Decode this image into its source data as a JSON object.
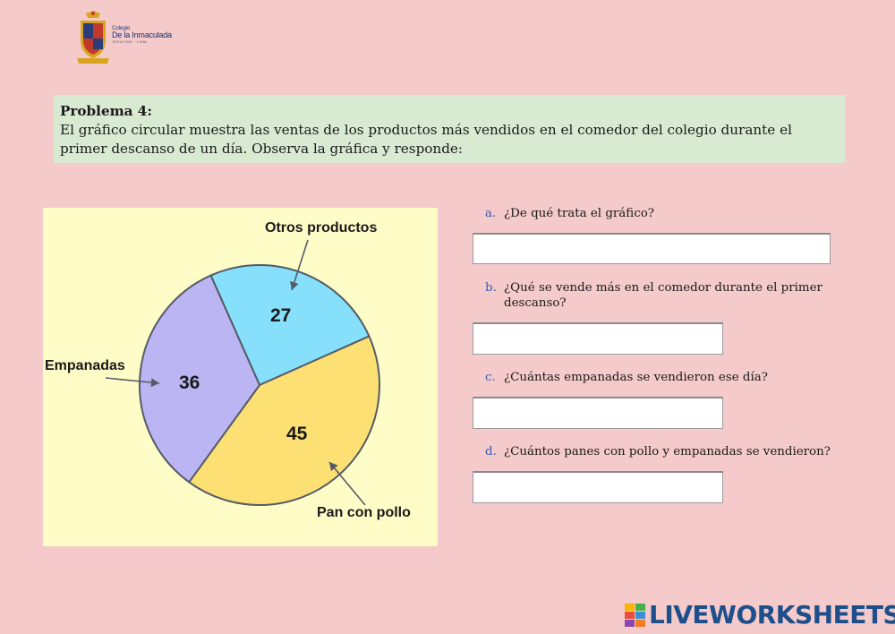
{
  "logo": {
    "line1": "Colegio",
    "line2": "De la Inmaculada",
    "line3": "JESUITAS · LIMA",
    "icon": "school-crest-icon"
  },
  "problem": {
    "title": "Problema 4:",
    "text": "El gráfico circular muestra las ventas de los productos más vendidos en el comedor del colegio durante el primer descanso de un día. Observa la gráfica y responde:"
  },
  "chart_data": {
    "type": "pie",
    "slices": [
      {
        "label": "Otros productos",
        "value": 27,
        "color": "#86e0fb"
      },
      {
        "label": "Pan con pollo",
        "value": 45,
        "color": "#fde074"
      },
      {
        "label": "Empanadas",
        "value": 36,
        "color": "#bcb5f4"
      }
    ],
    "background": "#fefdc8",
    "edge_color": "#555b66"
  },
  "questions": [
    {
      "letter": "a.",
      "text": "¿De qué trata el gráfico?",
      "cont": ""
    },
    {
      "letter": "b.",
      "text": "¿Qué se vende más en el comedor durante el primer",
      "cont": "descanso?"
    },
    {
      "letter": "c.",
      "text": "¿Cuántas empanadas se vendieron ese día?",
      "cont": ""
    },
    {
      "letter": "d.",
      "text": "¿Cuántos panes con pollo y empanadas se vendieron?",
      "cont": ""
    }
  ],
  "answers": [
    "",
    "",
    "",
    ""
  ],
  "brand": {
    "word": "LIVEWORKSHEETS",
    "icon": "liveworksheets-logo-icon"
  },
  "colors": {
    "background": "#f4caca",
    "problem_box": "#d9ead3",
    "letter": "#3b5bb7",
    "brand": "#1d4f8a"
  }
}
